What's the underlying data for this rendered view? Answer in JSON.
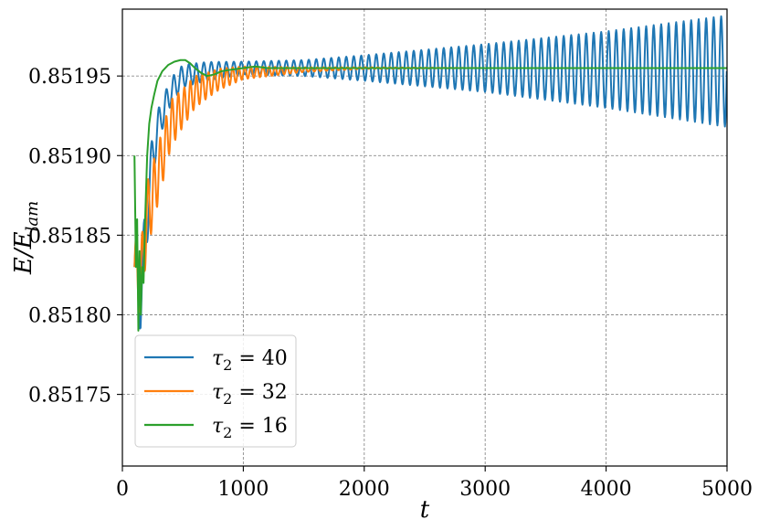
{
  "chart_data": {
    "type": "line",
    "xlabel": "t",
    "ylabel": "E/E_lam",
    "ylabel_parts": {
      "base": "E/E",
      "sub": "lam"
    },
    "xlim": [
      0,
      5000
    ],
    "ylim": [
      0.851705,
      0.851992
    ],
    "xticks": [
      0,
      1000,
      2000,
      3000,
      4000,
      5000
    ],
    "xtick_labels": [
      "0",
      "1000",
      "2000",
      "3000",
      "4000",
      "5000"
    ],
    "yticks": [
      0.85175,
      0.8518,
      0.85185,
      0.8519,
      0.85195
    ],
    "ytick_labels": [
      "0.85175",
      "0.85180",
      "0.85185",
      "0.85190",
      "0.85195"
    ],
    "grid": true,
    "legend_position": "lower-left",
    "series": [
      {
        "name": "τ2 = 40",
        "name_parts": {
          "sym": "τ",
          "sub": "2",
          "rest": " = 40"
        },
        "color": "#1f77b4",
        "oscillation_period": 62,
        "center": [
          [
            100,
            0.85183
          ],
          [
            150,
            0.85181
          ],
          [
            200,
            0.85186
          ],
          [
            250,
            0.8519
          ],
          [
            300,
            0.85192
          ],
          [
            400,
            0.85194
          ],
          [
            500,
            0.85195
          ],
          [
            700,
            0.851953
          ],
          [
            1000,
            0.851955
          ],
          [
            2000,
            0.851955
          ],
          [
            3000,
            0.851955
          ],
          [
            4000,
            0.851954
          ],
          [
            5000,
            0.851953
          ]
        ],
        "amplitude": [
          [
            100,
            2e-05
          ],
          [
            200,
            2e-05
          ],
          [
            300,
            1e-05
          ],
          [
            500,
            7e-06
          ],
          [
            1000,
            4e-06
          ],
          [
            1500,
            5e-06
          ],
          [
            2000,
            8e-06
          ],
          [
            3000,
            1.5e-05
          ],
          [
            4000,
            2.4e-05
          ],
          [
            5000,
            3.5e-05
          ]
        ]
      },
      {
        "name": "τ2 = 32",
        "name_parts": {
          "sym": "τ",
          "sub": "2",
          "rest": " = 32"
        },
        "color": "#ff7f0e",
        "oscillation_period": 50,
        "center": [
          [
            100,
            0.85183
          ],
          [
            150,
            0.85182
          ],
          [
            200,
            0.85186
          ],
          [
            300,
            0.85189
          ],
          [
            400,
            0.85192
          ],
          [
            500,
            0.85193
          ],
          [
            600,
            0.85194
          ],
          [
            800,
            0.851948
          ],
          [
            1000,
            0.851952
          ],
          [
            1500,
            0.851954
          ],
          [
            2000,
            0.851955
          ],
          [
            5000,
            0.851955
          ]
        ],
        "amplitude": [
          [
            100,
            2e-05
          ],
          [
            200,
            2.2e-05
          ],
          [
            300,
            1.8e-05
          ],
          [
            500,
            1.2e-05
          ],
          [
            700,
            8e-06
          ],
          [
            1000,
            4e-06
          ],
          [
            1500,
            1.5e-06
          ],
          [
            2000,
            5e-07
          ],
          [
            3000,
            0
          ],
          [
            5000,
            0
          ]
        ]
      },
      {
        "name": "τ2 = 16",
        "name_parts": {
          "sym": "τ",
          "sub": "2",
          "rest": " = 16"
        },
        "color": "#2ca02c",
        "points": [
          [
            100,
            0.8519
          ],
          [
            112,
            0.85183
          ],
          [
            122,
            0.85186
          ],
          [
            132,
            0.85179
          ],
          [
            142,
            0.85184
          ],
          [
            152,
            0.8518
          ],
          [
            163,
            0.85183
          ],
          [
            175,
            0.85182
          ],
          [
            188,
            0.85186
          ],
          [
            205,
            0.8519
          ],
          [
            222,
            0.85192
          ],
          [
            240,
            0.85193
          ],
          [
            262,
            0.851938
          ],
          [
            290,
            0.851947
          ],
          [
            330,
            0.851953
          ],
          [
            380,
            0.851957
          ],
          [
            430,
            0.851959
          ],
          [
            480,
            0.85196
          ],
          [
            520,
            0.85196
          ],
          [
            560,
            0.851958
          ],
          [
            600,
            0.851955
          ],
          [
            650,
            0.851952
          ],
          [
            700,
            0.85195
          ],
          [
            760,
            0.851951
          ],
          [
            820,
            0.851953
          ],
          [
            900,
            0.851954
          ],
          [
            1000,
            0.851955
          ],
          [
            1100,
            0.851956
          ],
          [
            1200,
            0.851955
          ],
          [
            1300,
            0.851955
          ],
          [
            1500,
            0.851955
          ],
          [
            2000,
            0.851955
          ],
          [
            5000,
            0.851955
          ]
        ]
      }
    ]
  }
}
